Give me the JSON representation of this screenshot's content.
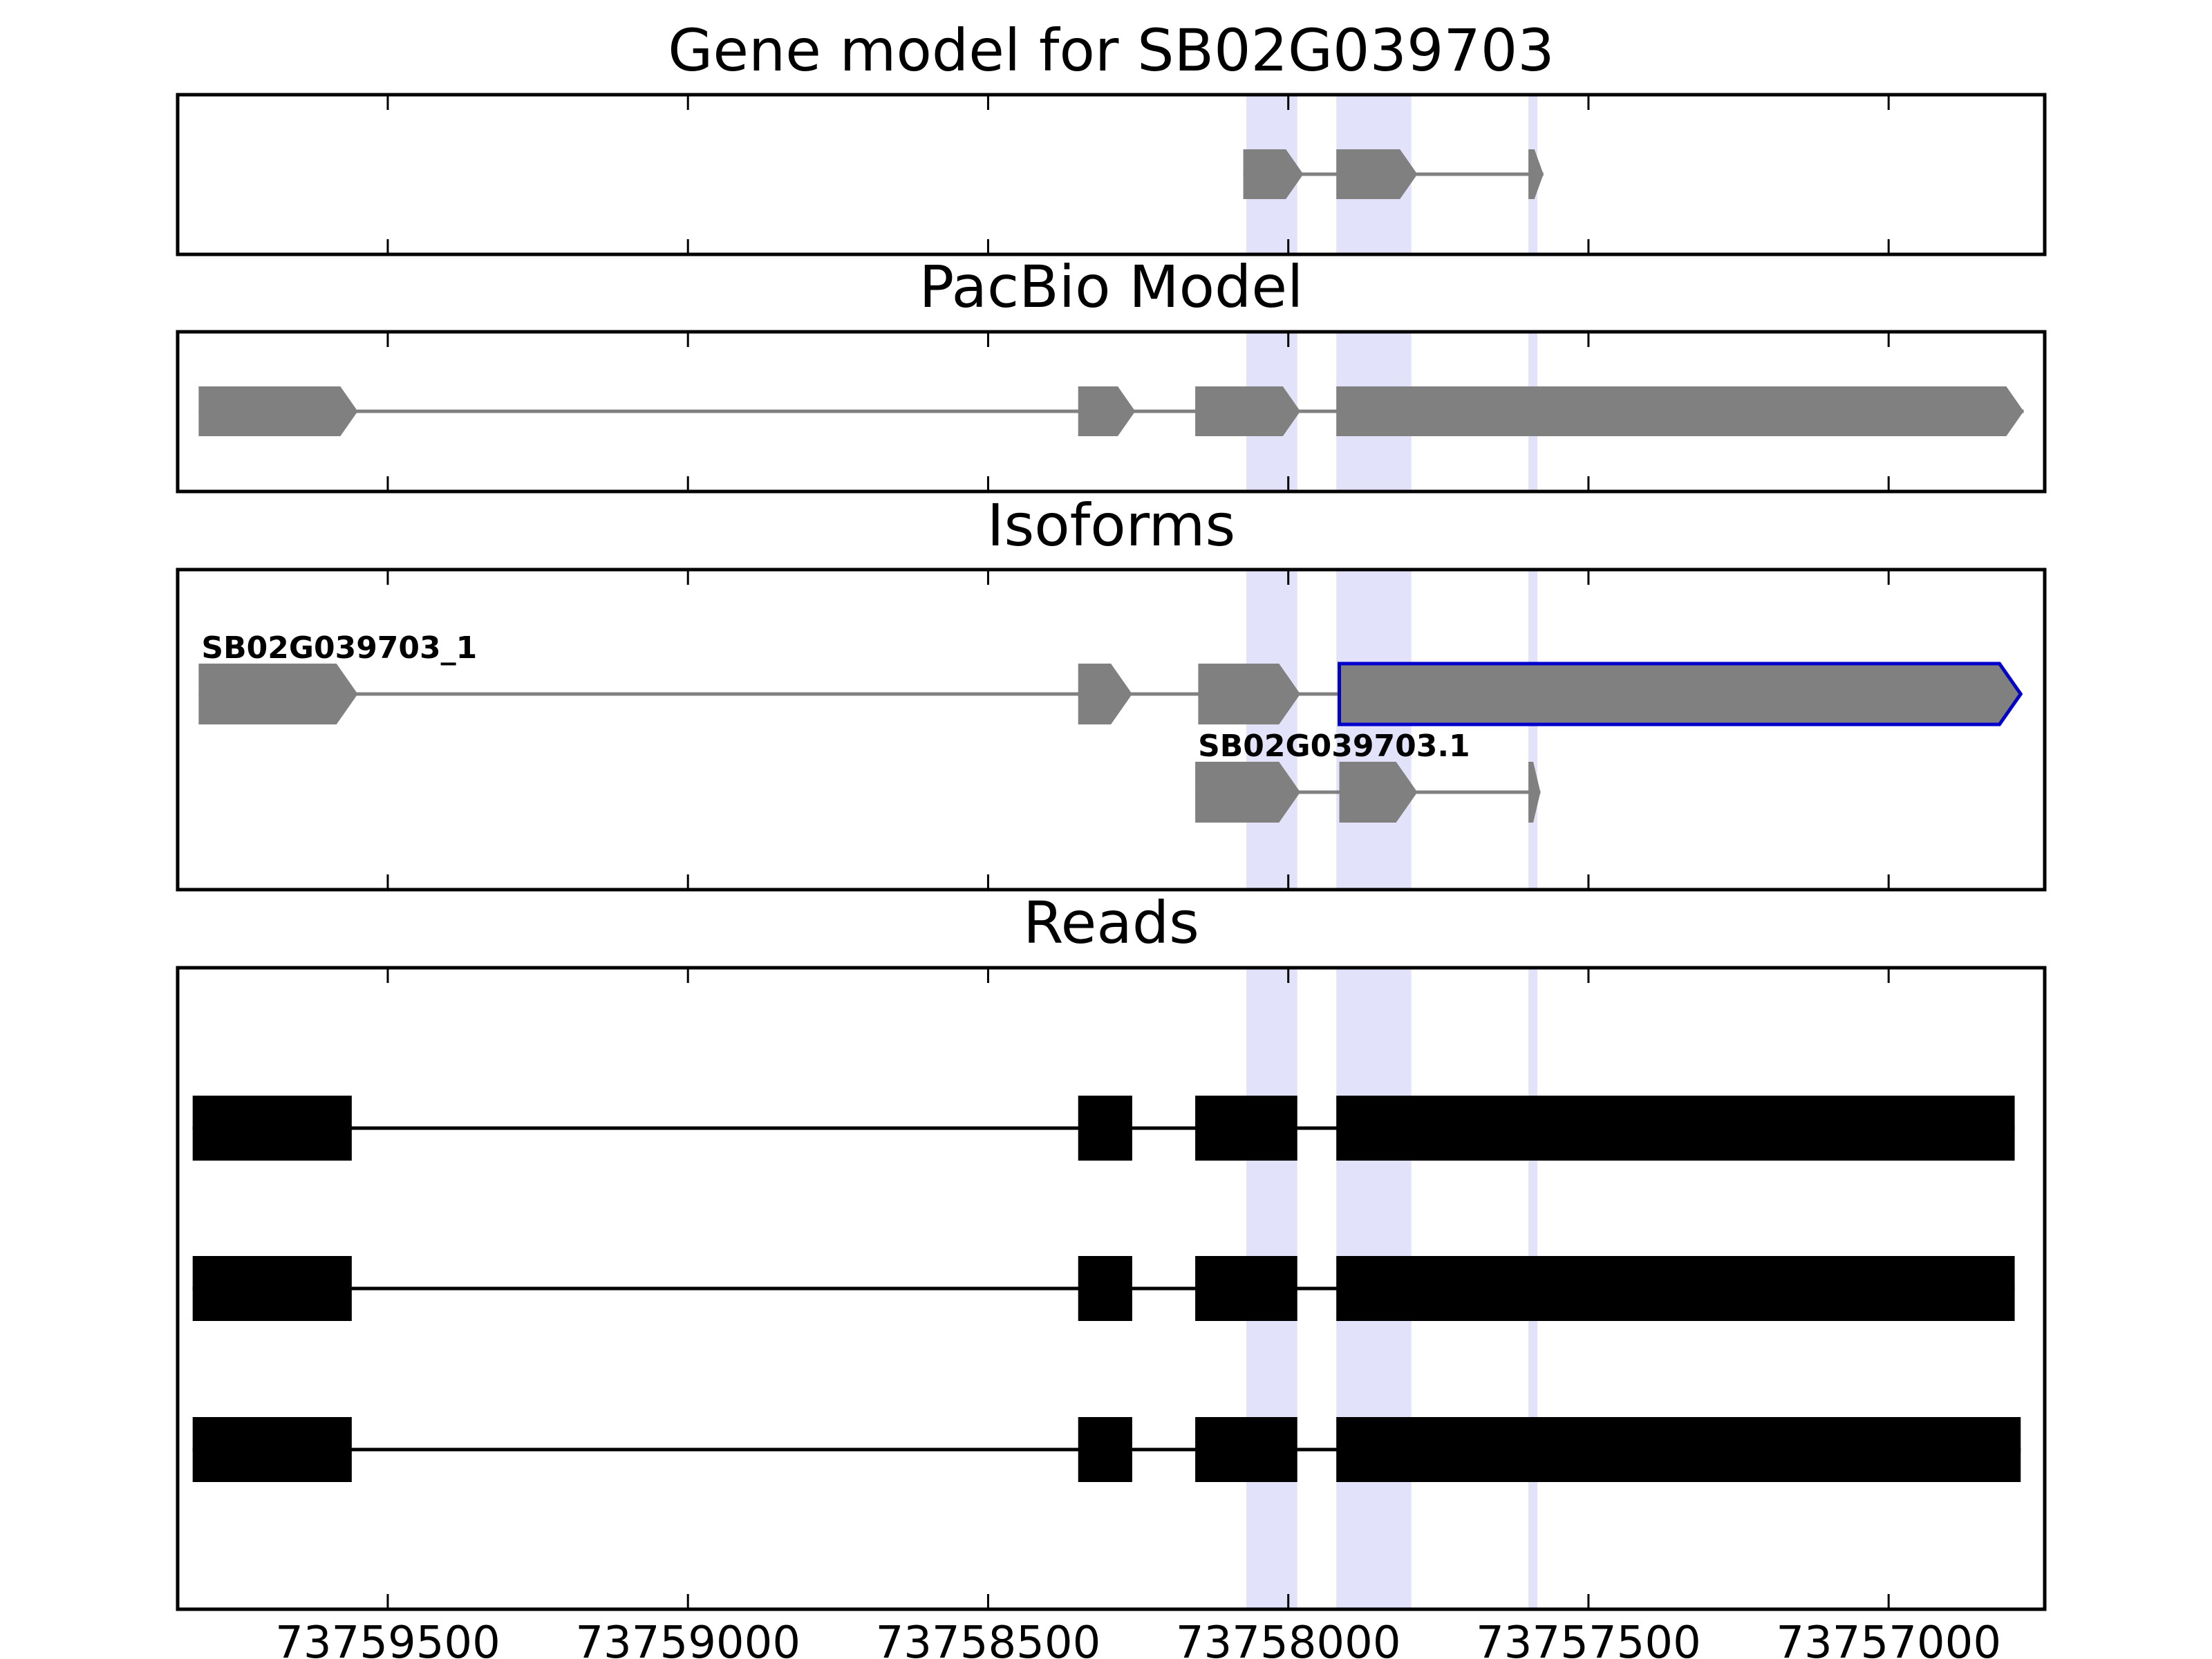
{
  "chart_data": {
    "type": "gene-track",
    "x_axis": {
      "range": [
        73759850,
        73756740
      ],
      "reversed": true,
      "ticks": [
        73759500,
        73759000,
        73758500,
        73758000,
        73757500,
        73757000
      ],
      "tick_labels": [
        "73759500",
        "73759000",
        "73758500",
        "73758000",
        "73757500",
        "73757000"
      ]
    },
    "highlights": [
      {
        "start": 73758070,
        "end": 73757985
      },
      {
        "start": 73757920,
        "end": 73757795
      },
      {
        "start": 73757600,
        "end": 73757585
      }
    ],
    "colors": {
      "exon": "#808080",
      "intron": "#808080",
      "selected_outline": "#0000cc",
      "read": "#000000",
      "highlight": "#e2e2fb",
      "frame": "#000000"
    },
    "panels": [
      {
        "id": "gene-model",
        "title": "Gene model for SB02G039703",
        "tracks": [
          {
            "label": "",
            "exons": [
              [
                73758075,
                73757975
              ],
              [
                73757920,
                73757785
              ],
              [
                73757600,
                73757575
              ]
            ]
          }
        ]
      },
      {
        "id": "pacbio-model",
        "title": "PacBio Model",
        "tracks": [
          {
            "label": "",
            "exons": [
              [
                73759815,
                73759550
              ],
              [
                73758350,
                73758255
              ],
              [
                73758155,
                73757980
              ],
              [
                73757920,
                73756775
              ]
            ]
          }
        ]
      },
      {
        "id": "isoforms",
        "title": "Isoforms",
        "tracks": [
          {
            "label": "SB02G039703_1",
            "exons": [
              [
                73759815,
                73759550
              ],
              [
                73758350,
                73758260
              ],
              [
                73758150,
                73757980
              ],
              [
                73757915,
                73756780
              ]
            ],
            "selected_exon": 3
          },
          {
            "label": "SB02G039703.1",
            "exons": [
              [
                73758155,
                73757980
              ],
              [
                73757915,
                73757785
              ],
              [
                73757600,
                73757580
              ]
            ]
          }
        ]
      },
      {
        "id": "reads",
        "title": "Reads",
        "tracks": [
          {
            "label": "",
            "exons": [
              [
                73759825,
                73759560
              ],
              [
                73758350,
                73758260
              ],
              [
                73758155,
                73757985
              ],
              [
                73757920,
                73756790
              ]
            ]
          },
          {
            "label": "",
            "exons": [
              [
                73759825,
                73759560
              ],
              [
                73758350,
                73758260
              ],
              [
                73758155,
                73757985
              ],
              [
                73757920,
                73756790
              ]
            ]
          },
          {
            "label": "",
            "exons": [
              [
                73759825,
                73759560
              ],
              [
                73758350,
                73758260
              ],
              [
                73758155,
                73757985
              ],
              [
                73757920,
                73756780
              ]
            ]
          }
        ]
      }
    ]
  }
}
